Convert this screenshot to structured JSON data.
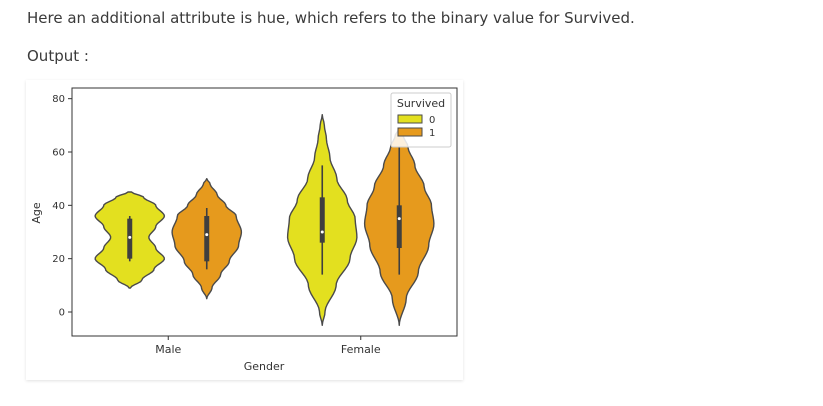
{
  "text": {
    "intro": "Here an additional attribute is hue, which refers to the binary value for Survived.",
    "output_label": "Output :"
  },
  "chart_data": {
    "type": "violin",
    "title": "",
    "xlabel": "Gender",
    "ylabel": "Age",
    "categories": [
      "Male",
      "Female"
    ],
    "yticks": [
      0,
      20,
      40,
      60,
      80
    ],
    "ylim": [
      -9,
      84
    ],
    "grid": false,
    "legend": {
      "title": "Survived",
      "placement": "top-right"
    },
    "series": [
      {
        "name": "0",
        "color": "#e3e01f",
        "violins": [
          {
            "category": "Male",
            "min": 9,
            "max": 45,
            "q1": 20,
            "median": 28,
            "q3": 35,
            "whisker_low": 19,
            "whisker_high": 36,
            "profile": [
              [
                9,
                0.02
              ],
              [
                12,
                0.35
              ],
              [
                16,
                0.7
              ],
              [
                20,
                1.0
              ],
              [
                24,
                0.75
              ],
              [
                28,
                0.55
              ],
              [
                32,
                0.75
              ],
              [
                36,
                1.0
              ],
              [
                40,
                0.75
              ],
              [
                43,
                0.4
              ],
              [
                45,
                0.05
              ]
            ]
          },
          {
            "category": "Female",
            "min": -5,
            "max": 74,
            "q1": 26,
            "median": 30,
            "q3": 43,
            "whisker_low": 14,
            "whisker_high": 55,
            "profile": [
              [
                -5,
                0.0
              ],
              [
                0,
                0.08
              ],
              [
                10,
                0.4
              ],
              [
                20,
                0.8
              ],
              [
                28,
                1.0
              ],
              [
                35,
                0.95
              ],
              [
                42,
                0.72
              ],
              [
                50,
                0.42
              ],
              [
                58,
                0.22
              ],
              [
                65,
                0.12
              ],
              [
                70,
                0.06
              ],
              [
                74,
                0.0
              ]
            ]
          }
        ]
      },
      {
        "name": "1",
        "color": "#e69a1d",
        "violins": [
          {
            "category": "Male",
            "min": 5,
            "max": 50,
            "q1": 19,
            "median": 29,
            "q3": 36,
            "whisker_low": 16,
            "whisker_high": 39,
            "profile": [
              [
                5,
                0.0
              ],
              [
                9,
                0.15
              ],
              [
                14,
                0.4
              ],
              [
                19,
                0.65
              ],
              [
                25,
                0.92
              ],
              [
                30,
                1.0
              ],
              [
                36,
                0.85
              ],
              [
                40,
                0.55
              ],
              [
                44,
                0.3
              ],
              [
                48,
                0.1
              ],
              [
                50,
                0.0
              ]
            ]
          },
          {
            "category": "Female",
            "min": -5,
            "max": 69,
            "q1": 24,
            "median": 35,
            "q3": 40,
            "whisker_low": 14,
            "whisker_high": 62,
            "profile": [
              [
                -5,
                0.0
              ],
              [
                5,
                0.2
              ],
              [
                15,
                0.55
              ],
              [
                25,
                0.85
              ],
              [
                33,
                1.0
              ],
              [
                40,
                0.93
              ],
              [
                47,
                0.72
              ],
              [
                55,
                0.45
              ],
              [
                62,
                0.25
              ],
              [
                66,
                0.12
              ],
              [
                69,
                0.0
              ]
            ]
          }
        ]
      }
    ]
  }
}
